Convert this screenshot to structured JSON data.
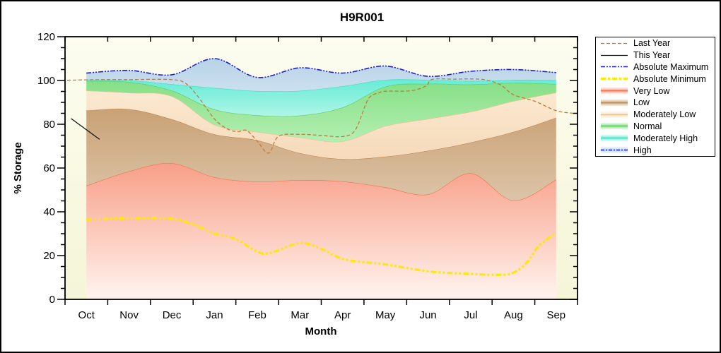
{
  "chart_data": {
    "type": "area",
    "title": "H9R001",
    "xlabel": "Month",
    "ylabel": "% Storage",
    "x_categories": [
      "Oct",
      "Nov",
      "Dec",
      "Jan",
      "Feb",
      "Mar",
      "Apr",
      "May",
      "Jun",
      "Jul",
      "Aug",
      "Sep"
    ],
    "y_ticks": [
      0,
      20,
      40,
      60,
      80,
      100,
      120
    ],
    "ylim": [
      0,
      120
    ],
    "y_minor_step": 5,
    "grid": false,
    "legend_position": "outside-right",
    "colors": {
      "figure_bg": "#FFFFFF",
      "plot_bg_top": "#FDFDF0",
      "plot_bg_bottom": "#F5F5D8",
      "axis": "#000000"
    },
    "boundaries": {
      "very_low_top": [
        51.9,
        58.5,
        62.2,
        55.8,
        53.8,
        54.5,
        53.9,
        51.2,
        48.0,
        57.6,
        45.2,
        54.7
      ],
      "low_top": [
        86.3,
        86.9,
        82.3,
        75.4,
        72.7,
        66.8,
        64.1,
        65.2,
        67.9,
        71.7,
        76.5,
        83.0
      ],
      "moderately_low_top": [
        95.4,
        94.4,
        92.8,
        79.8,
        76.5,
        74.0,
        72.2,
        79.2,
        82.5,
        85.7,
        90.6,
        94.5
      ],
      "normal_top": [
        99.8,
        99.3,
        95.4,
        86.8,
        84.1,
        84.0,
        87.7,
        97.2,
        98.5,
        98.2,
        98.9,
        98.4
      ],
      "moderately_high_top": [
        100.4,
        100.1,
        98.3,
        96.6,
        95.2,
        95.3,
        97.4,
        100.3,
        100.3,
        99.8,
        100.3,
        100.2
      ],
      "high_top": [
        103.4,
        104.6,
        102.6,
        110.0,
        101.4,
        105.8,
        103.4,
        106.6,
        101.9,
        104.2,
        105.0,
        103.6
      ]
    },
    "bands": [
      {
        "name": "Very Low",
        "top_boundary": "very_low_top",
        "fill_top": "#F89F88",
        "fill_bottom": "#FFF4EF",
        "edge": "#EF7455"
      },
      {
        "name": "Low",
        "top_boundary": "low_top",
        "fill_top": "#C9A175",
        "fill_bottom": "#DCC5A8",
        "edge": "#C08B57"
      },
      {
        "name": "Moderately Low",
        "top_boundary": "moderately_low_top",
        "fill_top": "#FBE9D1",
        "fill_bottom": "#F6DABA",
        "edge": "#E9C28F"
      },
      {
        "name": "Normal",
        "top_boundary": "normal_top",
        "fill_top": "#85DF86",
        "fill_bottom": "#B4EFB2",
        "edge": "#5FCD60"
      },
      {
        "name": "Moderately High",
        "top_boundary": "moderately_high_top",
        "fill_top": "#66ECD5",
        "fill_bottom": "#AFF5E7",
        "edge": "#3FE0C3"
      },
      {
        "name": "High",
        "top_boundary": "high_top",
        "fill_top": "#B7D2E6",
        "fill_bottom": "#CCE0EF",
        "edge": null
      }
    ],
    "lines": {
      "last_year": {
        "label": "Last Year",
        "color": "#BE7B3E",
        "dash": "5 3",
        "width": 1.3,
        "x": [
          -0.45,
          0,
          0.5,
          1,
          1.5,
          2,
          2.3,
          2.6,
          3,
          3.3,
          3.55,
          3.75,
          4,
          4.27,
          4.5,
          5,
          5.5,
          6,
          6.3,
          6.6,
          6.85,
          7,
          7.6,
          7.95,
          8.1,
          8.6,
          9,
          9.35,
          9.7,
          10,
          10.5,
          11,
          11.4
        ],
        "y": [
          100.1,
          100.3,
          100.4,
          100.4,
          100.5,
          100.4,
          99.0,
          93.0,
          82.4,
          77.9,
          76.6,
          77.2,
          72.3,
          66.8,
          74.5,
          75.4,
          74.9,
          74.4,
          77.5,
          91.5,
          94.3,
          95.1,
          95.3,
          97.5,
          100.5,
          100.6,
          100.7,
          100.3,
          98.0,
          93.5,
          90.5,
          86.2,
          85.0
        ]
      },
      "this_year": {
        "label": "This Year",
        "color": "#111111",
        "dash": "",
        "width": 1.3,
        "x": [
          -0.36,
          0.31
        ],
        "y": [
          82.6,
          73.1
        ]
      },
      "absolute_maximum": {
        "label": "Absolute Maximum",
        "color": "#1C1CD6",
        "dash": "7 2 2 2 2 2",
        "width": 1.6,
        "use_boundary": "high_top"
      },
      "absolute_minimum": {
        "label": "Absolute Minimum",
        "color": "#FFE70A",
        "dash": "8 3 3 3 3 3",
        "width": 3.2,
        "x": [
          0,
          1,
          2,
          2.5,
          3,
          3.5,
          4,
          4.3,
          5,
          5.5,
          6,
          6.5,
          7,
          8,
          9,
          9.7,
          10,
          10.3,
          10.6,
          11
        ],
        "y": [
          36.4,
          37.0,
          36.8,
          34.3,
          30.0,
          27.5,
          21.8,
          21.2,
          25.7,
          23.0,
          18.5,
          17.0,
          16.0,
          12.8,
          11.6,
          11.2,
          12.2,
          16.5,
          24.5,
          30.4
        ]
      }
    },
    "legend": {
      "items": [
        {
          "label": "Last Year",
          "swatch": "line",
          "color": "#BE7B3E",
          "dash": "5 3",
          "width": 1.3
        },
        {
          "label": "This Year",
          "swatch": "line",
          "color": "#111111",
          "dash": "",
          "width": 1.3
        },
        {
          "label": "Absolute Maximum",
          "swatch": "line",
          "color": "#1C1CD6",
          "dash": "6 2 2 2 2 2",
          "width": 1.6
        },
        {
          "label": "Absolute Minimum",
          "swatch": "line",
          "color": "#FFE70A",
          "dash": "7 3 3 3",
          "width": 3.2
        },
        {
          "label": "Very Low",
          "swatch": "band",
          "color": "#F9A48C",
          "line": "#EF7455",
          "line_dash": ""
        },
        {
          "label": "Low",
          "swatch": "band",
          "color": "#CFA87E",
          "line": "#C08B57",
          "line_dash": ""
        },
        {
          "label": "Moderately Low",
          "swatch": "band",
          "color": "#FAE3C4",
          "line": "#E9C28F",
          "line_dash": ""
        },
        {
          "label": "Normal",
          "swatch": "band",
          "color": "#8FE290",
          "line": "#5FCD60",
          "line_dash": ""
        },
        {
          "label": "Moderately High",
          "swatch": "band",
          "color": "#74EDD8",
          "line": "#3FE0C3",
          "line_dash": ""
        },
        {
          "label": "High",
          "swatch": "band",
          "color": "#B9D8EF",
          "line": "#1C1CD6",
          "line_dash": "5 2 2 2"
        }
      ]
    }
  }
}
